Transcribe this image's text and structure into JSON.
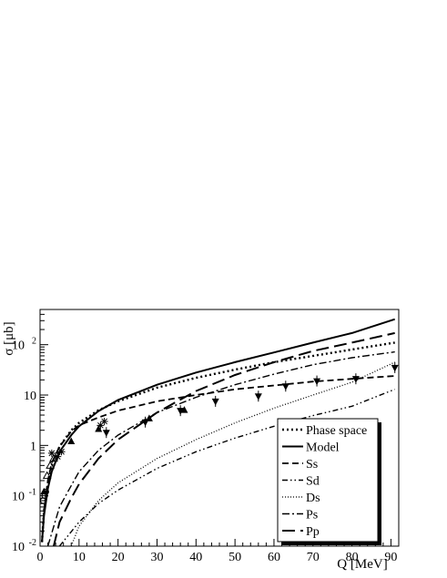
{
  "chart_data": {
    "type": "line",
    "title": "",
    "xlabel": "Q [MeV]",
    "ylabel": "σ [μb]",
    "x_scale": "linear",
    "y_scale": "log",
    "xlim": [
      0,
      92
    ],
    "ylim": [
      0.01,
      500
    ],
    "x_ticks": [
      0,
      10,
      20,
      30,
      40,
      50,
      60,
      70,
      80,
      90
    ],
    "x_tick_labels": [
      "0",
      "10",
      "20",
      "30",
      "40",
      "50",
      "60",
      "70",
      "80",
      "90"
    ],
    "y_ticks": [
      0.01,
      0.1,
      1,
      10,
      100
    ],
    "y_tick_labels": [
      {
        "base": "10",
        "exp": "-2"
      },
      {
        "base": "10",
        "exp": "-1"
      },
      {
        "base": "1",
        "exp": ""
      },
      {
        "base": "10",
        "exp": ""
      },
      {
        "base": "10",
        "exp": "2"
      }
    ],
    "grid": false,
    "legend_position": "bottom-right",
    "series": [
      {
        "name": "Phase space",
        "dash": "dotted-thick",
        "x": [
          0.5,
          1,
          2,
          3,
          5,
          8,
          10,
          15,
          20,
          30,
          40,
          50,
          60,
          70,
          80,
          91
        ],
        "y": [
          0.012,
          0.05,
          0.18,
          0.4,
          0.95,
          2.0,
          2.8,
          5.0,
          7.5,
          14,
          22,
          32,
          45,
          60,
          80,
          110
        ]
      },
      {
        "name": "Model",
        "dash": "solid",
        "x": [
          0.5,
          1,
          2,
          3,
          5,
          8,
          10,
          15,
          20,
          30,
          40,
          50,
          60,
          70,
          80,
          91
        ],
        "y": [
          0.012,
          0.04,
          0.14,
          0.3,
          0.75,
          1.6,
          2.4,
          4.8,
          8.0,
          16,
          28,
          45,
          70,
          110,
          170,
          320
        ]
      },
      {
        "name": "Ss",
        "dash": "dashed",
        "x": [
          0.5,
          1,
          2,
          3,
          5,
          8,
          10,
          15,
          20,
          30,
          40,
          50,
          60,
          70,
          80,
          91
        ],
        "y": [
          0.012,
          0.05,
          0.2,
          0.45,
          0.95,
          1.9,
          2.5,
          3.6,
          4.9,
          7.5,
          10,
          13,
          15.5,
          18.5,
          21,
          24
        ]
      },
      {
        "name": "Sd",
        "dash": "dash-dot-dot",
        "x": [
          5,
          10,
          15,
          20,
          30,
          40,
          50,
          60,
          70,
          80,
          91
        ],
        "y": [
          0.01,
          0.03,
          0.07,
          0.13,
          0.35,
          0.75,
          1.4,
          2.4,
          3.9,
          6.0,
          13
        ]
      },
      {
        "name": "Ds",
        "dash": "dotted-fine",
        "x": [
          8,
          10,
          15,
          20,
          30,
          40,
          50,
          60,
          70,
          80,
          91
        ],
        "y": [
          0.01,
          0.025,
          0.08,
          0.18,
          0.55,
          1.3,
          2.8,
          5.5,
          10,
          18,
          45
        ]
      },
      {
        "name": "Ps",
        "dash": "dash-dot",
        "x": [
          2,
          5,
          8,
          10,
          15,
          20,
          30,
          40,
          50,
          60,
          70,
          80,
          91
        ],
        "y": [
          0.01,
          0.06,
          0.16,
          0.3,
          0.8,
          1.6,
          4.5,
          9,
          16,
          26,
          40,
          55,
          72
        ]
      },
      {
        "name": "Pp",
        "dash": "long-dash",
        "x": [
          3.5,
          5,
          8,
          10,
          15,
          20,
          30,
          40,
          50,
          60,
          70,
          80,
          91
        ],
        "y": [
          0.01,
          0.03,
          0.09,
          0.17,
          0.55,
          1.3,
          4.5,
          12,
          25,
          45,
          75,
          110,
          170
        ]
      }
    ],
    "data_points": [
      {
        "marker": "circle-open",
        "x": [
          0.8,
          1.2,
          1.5
        ],
        "y": [
          0.08,
          0.1,
          0.12
        ]
      },
      {
        "marker": "triangle-open",
        "x": [
          1.8,
          2.6,
          3.5
        ],
        "y": [
          0.25,
          0.4,
          0.55
        ]
      },
      {
        "marker": "star-open",
        "x": [
          3.0,
          4.5,
          5.5,
          15.5,
          16.5
        ],
        "y": [
          0.7,
          0.6,
          0.75,
          2.5,
          3.0
        ]
      },
      {
        "marker": "triangle-up-filled",
        "x": [
          1.0,
          8.0,
          15.0,
          28.0,
          37.0
        ],
        "y": [
          0.12,
          1.2,
          2.1,
          3.4,
          5.0
        ]
      },
      {
        "marker": "triangle-down-filled",
        "x": [
          17.0,
          27.0,
          36.0,
          45.0,
          56.0,
          63.0,
          71.0,
          81.0,
          91.0
        ],
        "y": [
          1.8,
          2.9,
          4.9,
          7.5,
          9.5,
          15,
          19,
          21,
          35
        ]
      }
    ]
  }
}
